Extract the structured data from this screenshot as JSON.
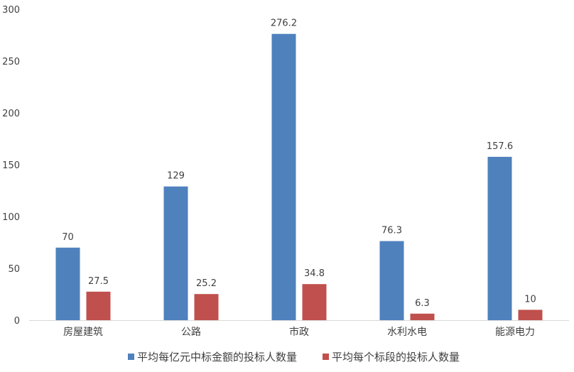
{
  "chart_data": {
    "type": "bar",
    "title": "",
    "xlabel": "",
    "ylabel": "",
    "categories": [
      "房屋建筑",
      "公路",
      "市政",
      "水利水电",
      "能源电力"
    ],
    "series": [
      {
        "name": "平均每亿元中标金额的投标人数量",
        "color": "#4F81BD",
        "values": [
          70,
          129,
          276.2,
          76.3,
          157.6
        ]
      },
      {
        "name": "平均每个标段的投标人数量",
        "color": "#C0504D",
        "values": [
          27.5,
          25.2,
          34.8,
          6.3,
          10
        ]
      }
    ],
    "ylim": [
      0,
      300
    ],
    "yticks": [
      0,
      50,
      100,
      150,
      200,
      250,
      300
    ],
    "grid": false,
    "legend_position": "bottom",
    "data_labels": true
  }
}
